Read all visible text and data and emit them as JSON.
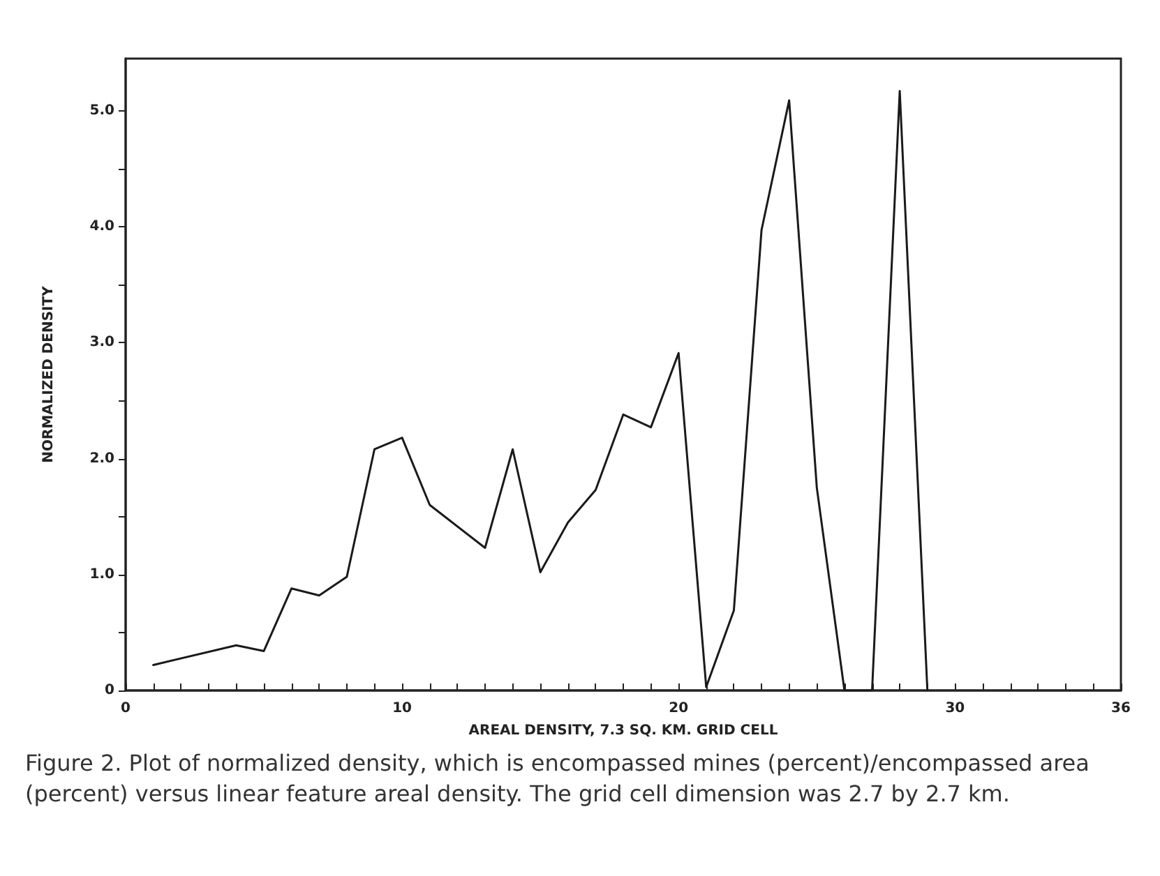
{
  "chart_data": {
    "type": "line",
    "xlabel": "AREAL DENSITY, 7.3 SQ. KM. GRID CELL",
    "ylabel": "NORMALIZED DENSITY",
    "annotations": [
      "Figure 2. Plot of normalized density, which is encompassed mines (percent)/encompassed area (percent) versus linear feature areal density. The grid cell dimension was 2.7 by 2.7 km."
    ],
    "x": [
      1,
      4,
      5,
      6,
      7,
      8,
      9,
      10,
      11,
      13,
      14,
      15,
      16,
      17,
      18,
      19,
      20,
      21,
      22,
      23,
      24,
      25,
      26,
      27,
      28,
      29
    ],
    "series": [
      {
        "color": "#1a1a1a",
        "values": [
          0.22,
          0.39,
          0.34,
          0.88,
          0.82,
          0.98,
          2.08,
          2.18,
          1.6,
          1.23,
          2.08,
          1.02,
          1.45,
          1.73,
          2.38,
          2.27,
          2.91,
          0.03,
          0.69,
          3.97,
          5.09,
          1.75,
          0,
          0,
          5.17,
          0
        ]
      }
    ],
    "xlim": [
      0,
      36
    ],
    "ylim": [
      0,
      5.45
    ],
    "xticks": [
      0,
      {
        "value": 1,
        "label": null
      },
      {
        "value": 2,
        "label": null
      },
      {
        "value": 3,
        "label": null
      },
      {
        "value": 4,
        "label": null
      },
      {
        "value": 5,
        "label": null
      },
      {
        "value": 6,
        "label": null
      },
      {
        "value": 7,
        "label": null
      },
      {
        "value": 8,
        "label": null
      },
      {
        "value": 9,
        "label": null
      },
      10,
      {
        "value": 11,
        "label": null
      },
      {
        "value": 12,
        "label": null
      },
      {
        "value": 13,
        "label": null
      },
      {
        "value": 14,
        "label": null
      },
      {
        "value": 15,
        "label": null
      },
      {
        "value": 16,
        "label": null
      },
      {
        "value": 17,
        "label": null
      },
      {
        "value": 18,
        "label": null
      },
      {
        "value": 19,
        "label": null
      },
      20,
      {
        "value": 21,
        "label": null
      },
      {
        "value": 22,
        "label": null
      },
      {
        "value": 23,
        "label": null
      },
      {
        "value": 24,
        "label": null
      },
      {
        "value": 25,
        "label": null
      },
      {
        "value": 26,
        "label": null
      },
      {
        "value": 27,
        "label": null
      },
      {
        "value": 28,
        "label": null
      },
      {
        "value": 29,
        "label": null
      },
      30,
      {
        "value": 31,
        "label": null
      },
      {
        "value": 32,
        "label": null
      },
      {
        "value": 33,
        "label": null
      },
      {
        "value": 34,
        "label": null
      },
      {
        "value": 35,
        "label": null
      },
      36
    ],
    "yticks": [
      0,
      {
        "value": 0.5,
        "label": null
      },
      {
        "value": 1,
        "label": "1.0"
      },
      {
        "value": 1.5,
        "label": null
      },
      {
        "value": 2,
        "label": "2.0"
      },
      {
        "value": 2.5,
        "label": null
      },
      {
        "value": 3,
        "label": "3.0"
      },
      {
        "value": 3.5,
        "label": null
      },
      {
        "value": 4,
        "label": "4.0"
      },
      {
        "value": 4.5,
        "label": null
      },
      {
        "value": 5,
        "label": "5.0"
      }
    ],
    "grid": false,
    "marker": "none",
    "line_style": "solid"
  }
}
